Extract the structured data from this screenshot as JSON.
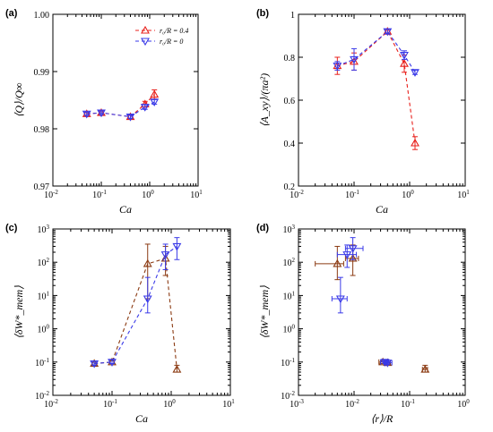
{
  "colors": {
    "red": "#e8201c",
    "blue": "#3a3ae8",
    "brown": "#8b3a12"
  },
  "chart_data": [
    {
      "panel_label": "(a)",
      "type": "line",
      "xscale": "log",
      "xlim": [
        0.01,
        10
      ],
      "ylim": [
        0.97,
        1.0
      ],
      "xticks": [
        0.01,
        0.1,
        1,
        10
      ],
      "xtick_labels": [
        [
          "10",
          "-2"
        ],
        [
          "10",
          "-1"
        ],
        [
          "10",
          "0"
        ],
        [
          "10",
          "1"
        ]
      ],
      "yticks": [
        0.97,
        0.98,
        0.99,
        1.0
      ],
      "ytick_labels": [
        "0.97",
        "0.98",
        "0.99",
        "1.00"
      ],
      "xlabel": "Ca",
      "ylabel": "⟨Q⟩/Q∞",
      "legend_position": "top-right",
      "series": [
        {
          "name": "r₀/R = 0.4",
          "color": "#e8201c",
          "marker": "triangle-up",
          "x": [
            0.05,
            0.1,
            0.4,
            0.8,
            1.25
          ],
          "y": [
            0.9826,
            0.9828,
            0.9821,
            0.9843,
            0.986
          ],
          "yerr": [
            0.0003,
            0.0003,
            0.0003,
            0.0005,
            0.0008
          ]
        },
        {
          "name": "r₀/R = 0",
          "color": "#3a3ae8",
          "marker": "triangle-down",
          "x": [
            0.05,
            0.1,
            0.4,
            0.8,
            1.25
          ],
          "y": [
            0.9826,
            0.9828,
            0.9821,
            0.9838,
            0.9847
          ],
          "yerr": [
            0.0003,
            0.0003,
            0.0003,
            0.0004,
            0.0004
          ]
        }
      ]
    },
    {
      "panel_label": "(b)",
      "type": "line",
      "xscale": "log",
      "xlim": [
        0.01,
        10
      ],
      "ylim": [
        0.2,
        1.0
      ],
      "xticks": [
        0.01,
        0.1,
        1,
        10
      ],
      "xtick_labels": [
        [
          "10",
          "-2"
        ],
        [
          "10",
          "-1"
        ],
        [
          "10",
          "0"
        ],
        [
          "10",
          "1"
        ]
      ],
      "yticks": [
        0.2,
        0.4,
        0.6,
        0.8,
        1.0
      ],
      "ytick_labels": [
        "0.2",
        "0.4",
        "0.6",
        "0.8",
        "1"
      ],
      "xlabel": "Ca",
      "ylabel": "⟨A_xy⟩/(πa²)",
      "series": [
        {
          "color": "#e8201c",
          "marker": "triangle-up",
          "x": [
            0.05,
            0.1,
            0.4,
            0.8,
            1.25
          ],
          "y": [
            0.76,
            0.78,
            0.92,
            0.77,
            0.4
          ],
          "yerr": [
            0.04,
            0.04,
            0.01,
            0.04,
            0.03
          ]
        },
        {
          "color": "#3a3ae8",
          "marker": "triangle-down",
          "x": [
            0.05,
            0.1,
            0.4,
            0.8,
            1.25
          ],
          "y": [
            0.76,
            0.79,
            0.92,
            0.81,
            0.73
          ],
          "yerr": [
            0.02,
            0.05,
            0.01,
            0.02,
            0.01
          ]
        }
      ]
    },
    {
      "panel_label": "(c)",
      "type": "line",
      "xscale": "log",
      "yscale": "log",
      "xlim": [
        0.01,
        10
      ],
      "ylim": [
        0.01,
        1000
      ],
      "xticks": [
        0.01,
        0.1,
        1,
        10
      ],
      "xtick_labels": [
        [
          "10",
          "-2"
        ],
        [
          "10",
          "-1"
        ],
        [
          "10",
          "0"
        ],
        [
          "10",
          "1"
        ]
      ],
      "yticks": [
        0.01,
        0.1,
        1,
        10,
        100,
        1000
      ],
      "ytick_labels": [
        [
          "10",
          "-2"
        ],
        [
          "10",
          "-1"
        ],
        [
          "10",
          "0"
        ],
        [
          "10",
          "1"
        ],
        [
          "10",
          "2"
        ],
        [
          "10",
          "3"
        ]
      ],
      "xlabel": "Ca",
      "ylabel": "⟨δW*_mem⟩",
      "series": [
        {
          "color": "#8b3a12",
          "marker": "triangle-up",
          "x": [
            0.05,
            0.1,
            0.4,
            0.8,
            1.25
          ],
          "y": [
            0.09,
            0.1,
            90,
            130,
            0.06
          ],
          "ylo": [
            0.08,
            0.09,
            8,
            40,
            0.05
          ],
          "yhi": [
            0.1,
            0.11,
            350,
            300,
            0.08
          ]
        },
        {
          "color": "#3a3ae8",
          "marker": "triangle-down",
          "x": [
            0.05,
            0.1,
            0.4,
            0.8,
            1.25
          ],
          "y": [
            0.09,
            0.1,
            8,
            170,
            300
          ],
          "ylo": [
            0.08,
            0.09,
            3,
            60,
            120
          ],
          "yhi": [
            0.1,
            0.12,
            35,
            350,
            550
          ]
        }
      ]
    },
    {
      "panel_label": "(d)",
      "type": "scatter",
      "xscale": "log",
      "yscale": "log",
      "xlim": [
        0.001,
        1
      ],
      "ylim": [
        0.01,
        1000
      ],
      "xticks": [
        0.001,
        0.01,
        0.1,
        1
      ],
      "xtick_labels": [
        [
          "10",
          "-3"
        ],
        [
          "10",
          "-2"
        ],
        [
          "10",
          "-1"
        ],
        [
          "10",
          "0"
        ]
      ],
      "yticks": [
        0.01,
        0.1,
        1,
        10,
        100,
        1000
      ],
      "ytick_labels": [
        [
          "10",
          "-2"
        ],
        [
          "10",
          "-1"
        ],
        [
          "10",
          "0"
        ],
        [
          "10",
          "1"
        ],
        [
          "10",
          "2"
        ],
        [
          "10",
          "3"
        ]
      ],
      "xlabel": "⟨r⟩/R",
      "ylabel": "⟨δW*_mem⟩",
      "series": [
        {
          "color": "#8b3a12",
          "marker": "triangle-up",
          "x": [
            0.005,
            0.0095,
            0.033,
            0.04,
            0.19
          ],
          "y": [
            90,
            130,
            0.1,
            0.095,
            0.06
          ],
          "xlo": [
            0.002,
            0.007,
            0.028,
            0.035,
            0.17
          ],
          "xhi": [
            0.0065,
            0.012,
            0.038,
            0.045,
            0.21
          ],
          "ylo": [
            30,
            40,
            0.09,
            0.085,
            0.05
          ],
          "yhi": [
            300,
            330,
            0.11,
            0.105,
            0.08
          ]
        },
        {
          "color": "#3a3ae8",
          "marker": "triangle-down",
          "x": [
            0.0057,
            0.0075,
            0.0095,
            0.036,
            0.04
          ],
          "y": [
            8,
            170,
            260,
            0.1,
            0.095
          ],
          "xlo": [
            0.004,
            0.005,
            0.007,
            0.03,
            0.035
          ],
          "xhi": [
            0.0075,
            0.011,
            0.0145,
            0.042,
            0.048
          ],
          "ylo": [
            3,
            70,
            120,
            0.09,
            0.085
          ],
          "yhi": [
            35,
            330,
            550,
            0.11,
            0.105
          ]
        }
      ]
    }
  ]
}
